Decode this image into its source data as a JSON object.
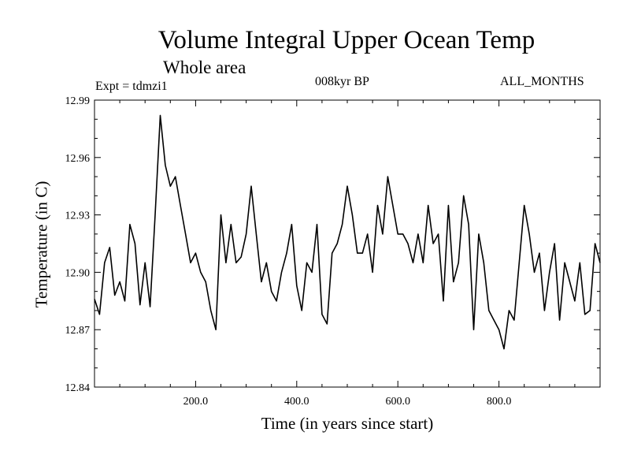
{
  "chart_data": {
    "type": "line",
    "title": "Volume Integral Upper Ocean Temp",
    "subtitle": "Whole area",
    "experiment": "Expt = tdmzi1",
    "period": "008kyr BP",
    "months": "ALL_MONTHS",
    "xlabel": "Time (in years since start)",
    "ylabel": "Temperature (in C)",
    "xlim": [
      0,
      1000
    ],
    "ylim": [
      12.84,
      12.99
    ],
    "x_ticks": [
      200,
      400,
      600,
      800
    ],
    "x_tick_labels": [
      "200.0",
      "400.0",
      "600.0",
      "800.0"
    ],
    "y_ticks": [
      12.84,
      12.87,
      12.9,
      12.93,
      12.96,
      12.99
    ],
    "y_tick_labels": [
      "12.84",
      "12.87",
      "12.90",
      "12.93",
      "12.96",
      "12.99"
    ],
    "series": [
      {
        "name": "Temperature",
        "x": [
          0,
          10,
          20,
          30,
          40,
          50,
          60,
          70,
          80,
          90,
          100,
          110,
          120,
          130,
          140,
          150,
          160,
          170,
          180,
          190,
          200,
          210,
          220,
          230,
          240,
          250,
          260,
          270,
          280,
          290,
          300,
          310,
          320,
          330,
          340,
          350,
          360,
          370,
          380,
          390,
          400,
          410,
          420,
          430,
          440,
          450,
          460,
          470,
          480,
          490,
          500,
          510,
          520,
          530,
          540,
          550,
          560,
          570,
          580,
          590,
          600,
          610,
          620,
          630,
          640,
          650,
          660,
          670,
          680,
          690,
          700,
          710,
          720,
          730,
          740,
          750,
          760,
          770,
          780,
          790,
          800,
          810,
          820,
          830,
          840,
          850,
          860,
          870,
          880,
          890,
          900,
          910,
          920,
          930,
          940,
          950,
          960,
          970,
          980,
          990,
          1000
        ],
        "values": [
          12.886,
          12.878,
          12.905,
          12.913,
          12.888,
          12.895,
          12.885,
          12.925,
          12.915,
          12.883,
          12.905,
          12.882,
          12.93,
          12.982,
          12.956,
          12.945,
          12.95,
          12.935,
          12.92,
          12.905,
          12.91,
          12.9,
          12.895,
          12.88,
          12.87,
          12.93,
          12.905,
          12.925,
          12.905,
          12.908,
          12.92,
          12.945,
          12.92,
          12.895,
          12.905,
          12.89,
          12.885,
          12.9,
          12.91,
          12.925,
          12.893,
          12.88,
          12.905,
          12.9,
          12.925,
          12.878,
          12.873,
          12.91,
          12.915,
          12.925,
          12.945,
          12.93,
          12.91,
          12.91,
          12.92,
          12.9,
          12.935,
          12.92,
          12.95,
          12.935,
          12.92,
          12.92,
          12.915,
          12.905,
          12.92,
          12.905,
          12.935,
          12.915,
          12.92,
          12.885,
          12.935,
          12.895,
          12.905,
          12.94,
          12.925,
          12.87,
          12.92,
          12.905,
          12.88,
          12.875,
          12.87,
          12.86,
          12.88,
          12.875,
          12.905,
          12.935,
          12.92,
          12.9,
          12.91,
          12.88,
          12.9,
          12.915,
          12.875,
          12.905,
          12.895,
          12.885,
          12.905,
          12.878,
          12.88,
          12.915,
          12.905
        ]
      }
    ]
  }
}
